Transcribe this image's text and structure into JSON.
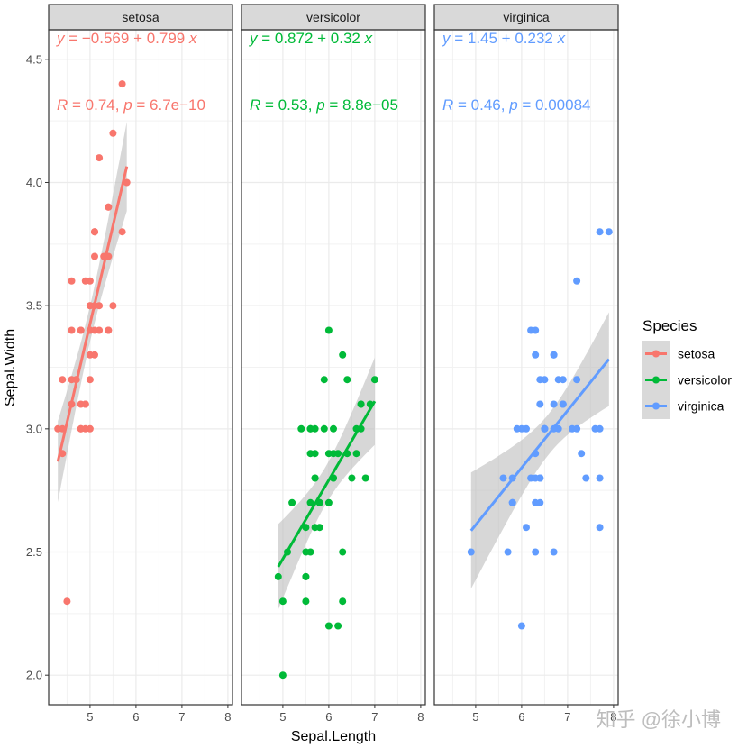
{
  "chart_data": {
    "type": "scatter",
    "facet_by": "Species",
    "facets": [
      "setosa",
      "versicolor",
      "virginica"
    ],
    "xlabel": "Sepal.Length",
    "ylabel": "Sepal.Width",
    "xlim": [
      4.1,
      8.1
    ],
    "ylim": [
      1.88,
      4.62
    ],
    "x_ticks": [
      "5",
      "6",
      "7",
      "8"
    ],
    "x_tick_values": [
      5,
      6,
      7,
      8
    ],
    "y_ticks": [
      "2.0",
      "2.5",
      "3.0",
      "3.5",
      "4.0",
      "4.5"
    ],
    "y_tick_values": [
      2.0,
      2.5,
      3.0,
      3.5,
      4.0,
      4.5
    ],
    "grid": true,
    "legend": {
      "title": "Species",
      "position": "right",
      "entries": [
        "setosa",
        "versicolor",
        "virginica"
      ]
    },
    "colors": {
      "setosa": "#F8766D",
      "versicolor": "#00BA38",
      "virginica": "#619CFF",
      "ribbon": "#BDBDBD",
      "strip_bg": "#D9D9D9"
    },
    "series": [
      {
        "name": "setosa",
        "equation": {
          "y": "y",
          "eq": " = −0.569 + 0.799 ",
          "x": "x"
        },
        "stats": {
          "R": "R",
          "r_val": " = 0.74, ",
          "p": "p",
          "p_val": " = 6.7e−10"
        },
        "fit": {
          "intercept": -0.569,
          "slope": 0.799,
          "x_range": [
            4.3,
            5.8
          ]
        },
        "points": [
          [
            5.1,
            3.5
          ],
          [
            4.9,
            3.0
          ],
          [
            4.7,
            3.2
          ],
          [
            4.6,
            3.1
          ],
          [
            5.0,
            3.6
          ],
          [
            5.4,
            3.9
          ],
          [
            4.6,
            3.4
          ],
          [
            5.0,
            3.4
          ],
          [
            4.4,
            2.9
          ],
          [
            4.9,
            3.1
          ],
          [
            5.4,
            3.7
          ],
          [
            4.8,
            3.4
          ],
          [
            4.8,
            3.0
          ],
          [
            4.3,
            3.0
          ],
          [
            5.8,
            4.0
          ],
          [
            5.7,
            4.4
          ],
          [
            5.4,
            3.9
          ],
          [
            5.1,
            3.5
          ],
          [
            5.7,
            3.8
          ],
          [
            5.1,
            3.8
          ],
          [
            5.4,
            3.4
          ],
          [
            5.1,
            3.7
          ],
          [
            4.6,
            3.6
          ],
          [
            5.1,
            3.3
          ],
          [
            4.8,
            3.4
          ],
          [
            5.0,
            3.0
          ],
          [
            5.0,
            3.4
          ],
          [
            5.2,
            3.5
          ],
          [
            5.2,
            3.4
          ],
          [
            4.7,
            3.2
          ],
          [
            4.8,
            3.1
          ],
          [
            5.4,
            3.4
          ],
          [
            5.2,
            4.1
          ],
          [
            5.5,
            4.2
          ],
          [
            4.9,
            3.1
          ],
          [
            5.0,
            3.2
          ],
          [
            5.5,
            3.5
          ],
          [
            4.9,
            3.6
          ],
          [
            4.4,
            3.0
          ],
          [
            5.1,
            3.4
          ],
          [
            5.0,
            3.5
          ],
          [
            4.5,
            2.3
          ],
          [
            4.4,
            3.2
          ],
          [
            5.0,
            3.5
          ],
          [
            5.1,
            3.8
          ],
          [
            4.8,
            3.0
          ],
          [
            5.1,
            3.8
          ],
          [
            4.6,
            3.2
          ],
          [
            5.3,
            3.7
          ],
          [
            5.0,
            3.3
          ]
        ]
      },
      {
        "name": "versicolor",
        "equation": {
          "y": "y",
          "eq": " = 0.872 + 0.32 ",
          "x": "x"
        },
        "stats": {
          "R": "R",
          "r_val": " = 0.53, ",
          "p": "p",
          "p_val": " = 8.8e−05"
        },
        "fit": {
          "intercept": 0.872,
          "slope": 0.32,
          "x_range": [
            4.9,
            7.0
          ]
        },
        "points": [
          [
            7.0,
            3.2
          ],
          [
            6.4,
            3.2
          ],
          [
            6.9,
            3.1
          ],
          [
            5.5,
            2.3
          ],
          [
            6.5,
            2.8
          ],
          [
            5.7,
            2.8
          ],
          [
            6.3,
            3.3
          ],
          [
            4.9,
            2.4
          ],
          [
            6.6,
            2.9
          ],
          [
            5.2,
            2.7
          ],
          [
            5.0,
            2.0
          ],
          [
            5.9,
            3.0
          ],
          [
            6.0,
            2.2
          ],
          [
            6.1,
            2.9
          ],
          [
            5.6,
            2.9
          ],
          [
            6.7,
            3.1
          ],
          [
            5.6,
            3.0
          ],
          [
            5.8,
            2.7
          ],
          [
            6.2,
            2.2
          ],
          [
            5.6,
            2.5
          ],
          [
            5.9,
            3.2
          ],
          [
            6.1,
            2.8
          ],
          [
            6.3,
            2.5
          ],
          [
            6.1,
            2.8
          ],
          [
            6.4,
            2.9
          ],
          [
            6.6,
            3.0
          ],
          [
            6.8,
            2.8
          ],
          [
            6.7,
            3.0
          ],
          [
            6.0,
            2.9
          ],
          [
            5.7,
            2.6
          ],
          [
            5.5,
            2.4
          ],
          [
            5.5,
            2.4
          ],
          [
            5.8,
            2.7
          ],
          [
            6.0,
            2.7
          ],
          [
            5.4,
            3.0
          ],
          [
            6.0,
            3.4
          ],
          [
            6.7,
            3.1
          ],
          [
            6.3,
            2.3
          ],
          [
            5.6,
            3.0
          ],
          [
            5.5,
            2.5
          ],
          [
            5.5,
            2.6
          ],
          [
            6.1,
            3.0
          ],
          [
            5.8,
            2.6
          ],
          [
            5.0,
            2.3
          ],
          [
            5.6,
            2.7
          ],
          [
            5.7,
            3.0
          ],
          [
            5.7,
            2.9
          ],
          [
            6.2,
            2.9
          ],
          [
            5.1,
            2.5
          ],
          [
            5.7,
            2.8
          ]
        ]
      },
      {
        "name": "virginica",
        "equation": {
          "y": "y",
          "eq": " = 1.45 + 0.232 ",
          "x": "x"
        },
        "stats": {
          "R": "R",
          "r_val": " = 0.46, ",
          "p": "p",
          "p_val": " = 0.00084"
        },
        "fit": {
          "intercept": 1.45,
          "slope": 0.232,
          "x_range": [
            4.9,
            7.9
          ]
        },
        "points": [
          [
            6.3,
            3.3
          ],
          [
            5.8,
            2.7
          ],
          [
            7.1,
            3.0
          ],
          [
            6.3,
            2.9
          ],
          [
            6.5,
            3.0
          ],
          [
            7.6,
            3.0
          ],
          [
            4.9,
            2.5
          ],
          [
            7.3,
            2.9
          ],
          [
            6.7,
            2.5
          ],
          [
            7.2,
            3.6
          ],
          [
            6.5,
            3.2
          ],
          [
            6.4,
            2.7
          ],
          [
            6.8,
            3.0
          ],
          [
            5.7,
            2.5
          ],
          [
            5.8,
            2.8
          ],
          [
            6.4,
            3.2
          ],
          [
            6.5,
            3.0
          ],
          [
            7.7,
            3.8
          ],
          [
            7.7,
            2.6
          ],
          [
            6.0,
            2.2
          ],
          [
            6.9,
            3.2
          ],
          [
            5.6,
            2.8
          ],
          [
            7.7,
            2.8
          ],
          [
            6.3,
            2.7
          ],
          [
            6.7,
            3.3
          ],
          [
            7.2,
            3.2
          ],
          [
            6.2,
            2.8
          ],
          [
            6.1,
            3.0
          ],
          [
            6.4,
            2.8
          ],
          [
            7.2,
            3.0
          ],
          [
            7.4,
            2.8
          ],
          [
            7.9,
            3.8
          ],
          [
            6.4,
            2.8
          ],
          [
            6.3,
            2.8
          ],
          [
            6.1,
            2.6
          ],
          [
            7.7,
            3.0
          ],
          [
            6.3,
            3.4
          ],
          [
            6.4,
            3.1
          ],
          [
            6.0,
            3.0
          ],
          [
            6.9,
            3.1
          ],
          [
            6.7,
            3.1
          ],
          [
            6.9,
            3.1
          ],
          [
            5.8,
            2.7
          ],
          [
            6.8,
            3.2
          ],
          [
            6.7,
            3.3
          ],
          [
            6.7,
            3.0
          ],
          [
            6.3,
            2.5
          ],
          [
            6.5,
            3.0
          ],
          [
            6.2,
            3.4
          ],
          [
            5.9,
            3.0
          ]
        ]
      }
    ]
  },
  "watermark": "知乎 @徐小博"
}
